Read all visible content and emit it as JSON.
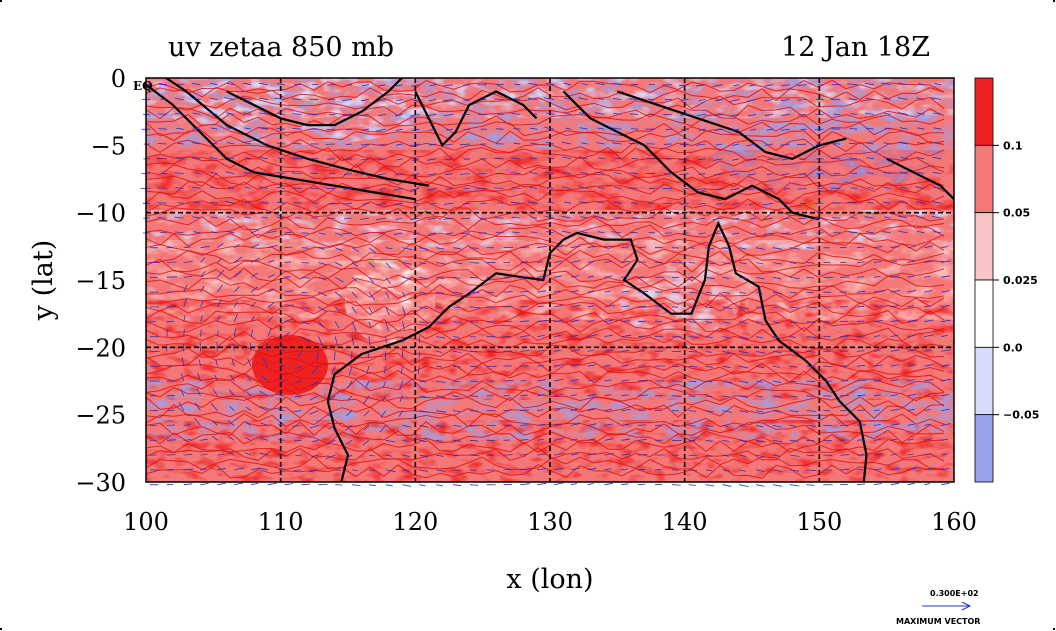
{
  "plot": {
    "title_left": "uv zetaa 850 mb",
    "title_right": "12 Jan 18Z",
    "xlabel": "x (lon)",
    "ylabel": "y (lat)",
    "eq_label": "EQ",
    "x_ticks": [
      "100",
      "110",
      "120",
      "130",
      "140",
      "150",
      "160"
    ],
    "y_ticks": [
      "0",
      "−5",
      "−10",
      "−15",
      "−20",
      "−25",
      "−30"
    ],
    "xlim": [
      100,
      160
    ],
    "ylim": [
      -30,
      0
    ],
    "grid": "dashed lines every 10 degrees"
  },
  "colorbar": {
    "labels": [
      "0.1",
      "0.05",
      "0.025",
      "0.0",
      "−0.05"
    ],
    "levels": [
      {
        "color": "#ee2222"
      },
      {
        "color": "#f47878"
      },
      {
        "color": "#f9c4c4"
      },
      {
        "color": "#ffffff"
      },
      {
        "color": "#d8dcfa"
      },
      {
        "color": "#9aa2ec"
      }
    ]
  },
  "vector_key": {
    "value": "0.300E+02",
    "label": "MAXIMUM VECTOR"
  },
  "colors": {
    "vector": "#2233cc",
    "contour": "#e01010",
    "coast": "#000000",
    "neg_shade": "#9aa2ec",
    "neg_light": "#d8dcfa",
    "pos_dark": "#ee2222",
    "pos_mid": "#f47878",
    "pos_light": "#f9c4c4"
  }
}
